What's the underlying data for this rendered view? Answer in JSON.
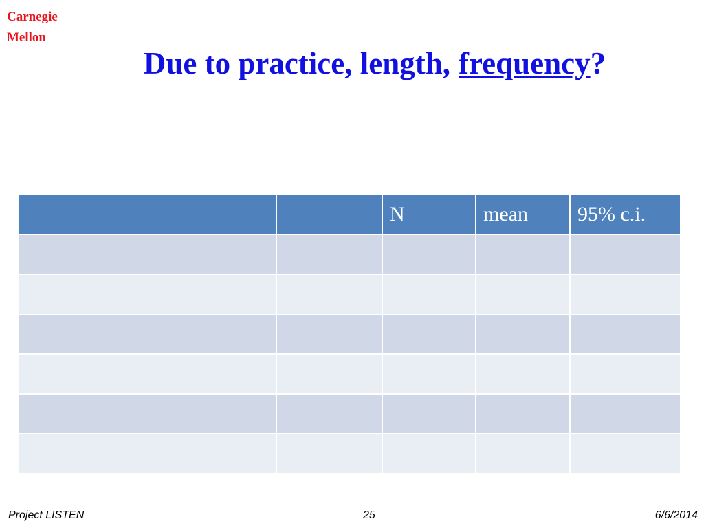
{
  "logo": {
    "lines": [
      "Carnegie",
      "Mellon"
    ]
  },
  "title": {
    "parts": [
      "Due to practice, length,",
      "frequency",
      "?"
    ]
  },
  "table": {
    "header": [
      "N",
      "mean",
      "95% c.i."
    ]
  },
  "footer": {
    "left": "Project LISTEN",
    "center": "25",
    "right": "6/6/2014"
  }
}
